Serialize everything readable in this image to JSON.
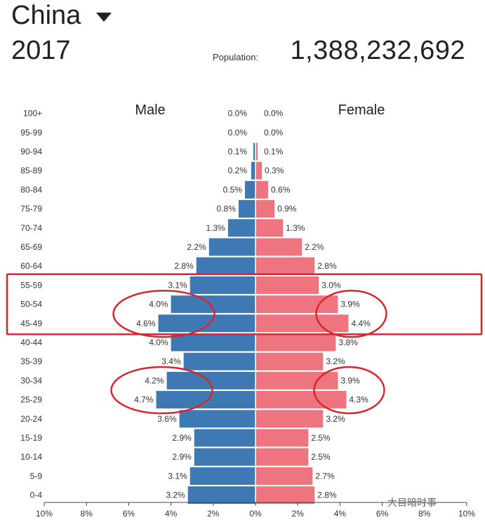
{
  "header": {
    "country": "China",
    "year": "2017",
    "population_label": "Population:",
    "population_value": "1,388,232,692"
  },
  "watermark": "大目暗时事",
  "colors": {
    "male": "#3f79b3",
    "female": "#ee7580",
    "highlight": "#d9262c"
  },
  "chart_data": {
    "type": "bar",
    "orientation": "horizontal-pyramid",
    "xlabel": "",
    "ylabel": "",
    "xlim": [
      -10,
      10
    ],
    "x_ticks": [
      "10%",
      "8%",
      "6%",
      "4%",
      "2%",
      "0%",
      "2%",
      "4%",
      "6%",
      "8%",
      "10%"
    ],
    "categories": [
      "100+",
      "95-99",
      "90-94",
      "85-89",
      "80-84",
      "75-79",
      "70-74",
      "65-69",
      "60-64",
      "55-59",
      "50-54",
      "45-49",
      "40-44",
      "35-39",
      "30-34",
      "25-29",
      "20-24",
      "15-19",
      "10-14",
      "5-9",
      "0-4"
    ],
    "series": [
      {
        "name": "Male",
        "values": [
          0.0,
          0.0,
          0.1,
          0.2,
          0.5,
          0.8,
          1.3,
          2.2,
          2.8,
          3.1,
          4.0,
          4.6,
          4.0,
          3.4,
          4.2,
          4.7,
          3.6,
          2.9,
          2.9,
          3.1,
          3.2
        ],
        "labels": [
          "0.0%",
          "0.0%",
          "0.1%",
          "0.2%",
          "0.5%",
          "0.8%",
          "1.3%",
          "2.2%",
          "2.8%",
          "3.1%",
          "4.0%",
          "4.6%",
          "4.0%",
          "3.4%",
          "4.2%",
          "4.7%",
          "3.6%",
          "2.9%",
          "2.9%",
          "3.1%",
          "3.2%"
        ]
      },
      {
        "name": "Female",
        "values": [
          0.0,
          0.0,
          0.1,
          0.3,
          0.6,
          0.9,
          1.3,
          2.2,
          2.8,
          3.0,
          3.9,
          4.4,
          3.8,
          3.2,
          3.9,
          4.3,
          3.2,
          2.5,
          2.5,
          2.7,
          2.8
        ],
        "labels": [
          "0.0%",
          "0.0%",
          "0.1%",
          "0.3%",
          "0.6%",
          "0.9%",
          "1.3%",
          "2.2%",
          "2.8%",
          "3.0%",
          "3.9%",
          "4.4%",
          "3.8%",
          "3.2%",
          "3.9%",
          "4.3%",
          "3.2%",
          "2.5%",
          "2.5%",
          "2.7%",
          "2.8%"
        ]
      }
    ],
    "annotations": {
      "highlight_band": {
        "categories": [
          "55-59",
          "45-49"
        ]
      },
      "circles": [
        {
          "series": "Male",
          "categories": [
            "50-54",
            "45-49"
          ]
        },
        {
          "series": "Female",
          "categories": [
            "50-54",
            "45-49"
          ]
        },
        {
          "series": "Male",
          "categories": [
            "30-34",
            "25-29"
          ]
        },
        {
          "series": "Female",
          "categories": [
            "30-34",
            "25-29"
          ]
        }
      ]
    }
  }
}
